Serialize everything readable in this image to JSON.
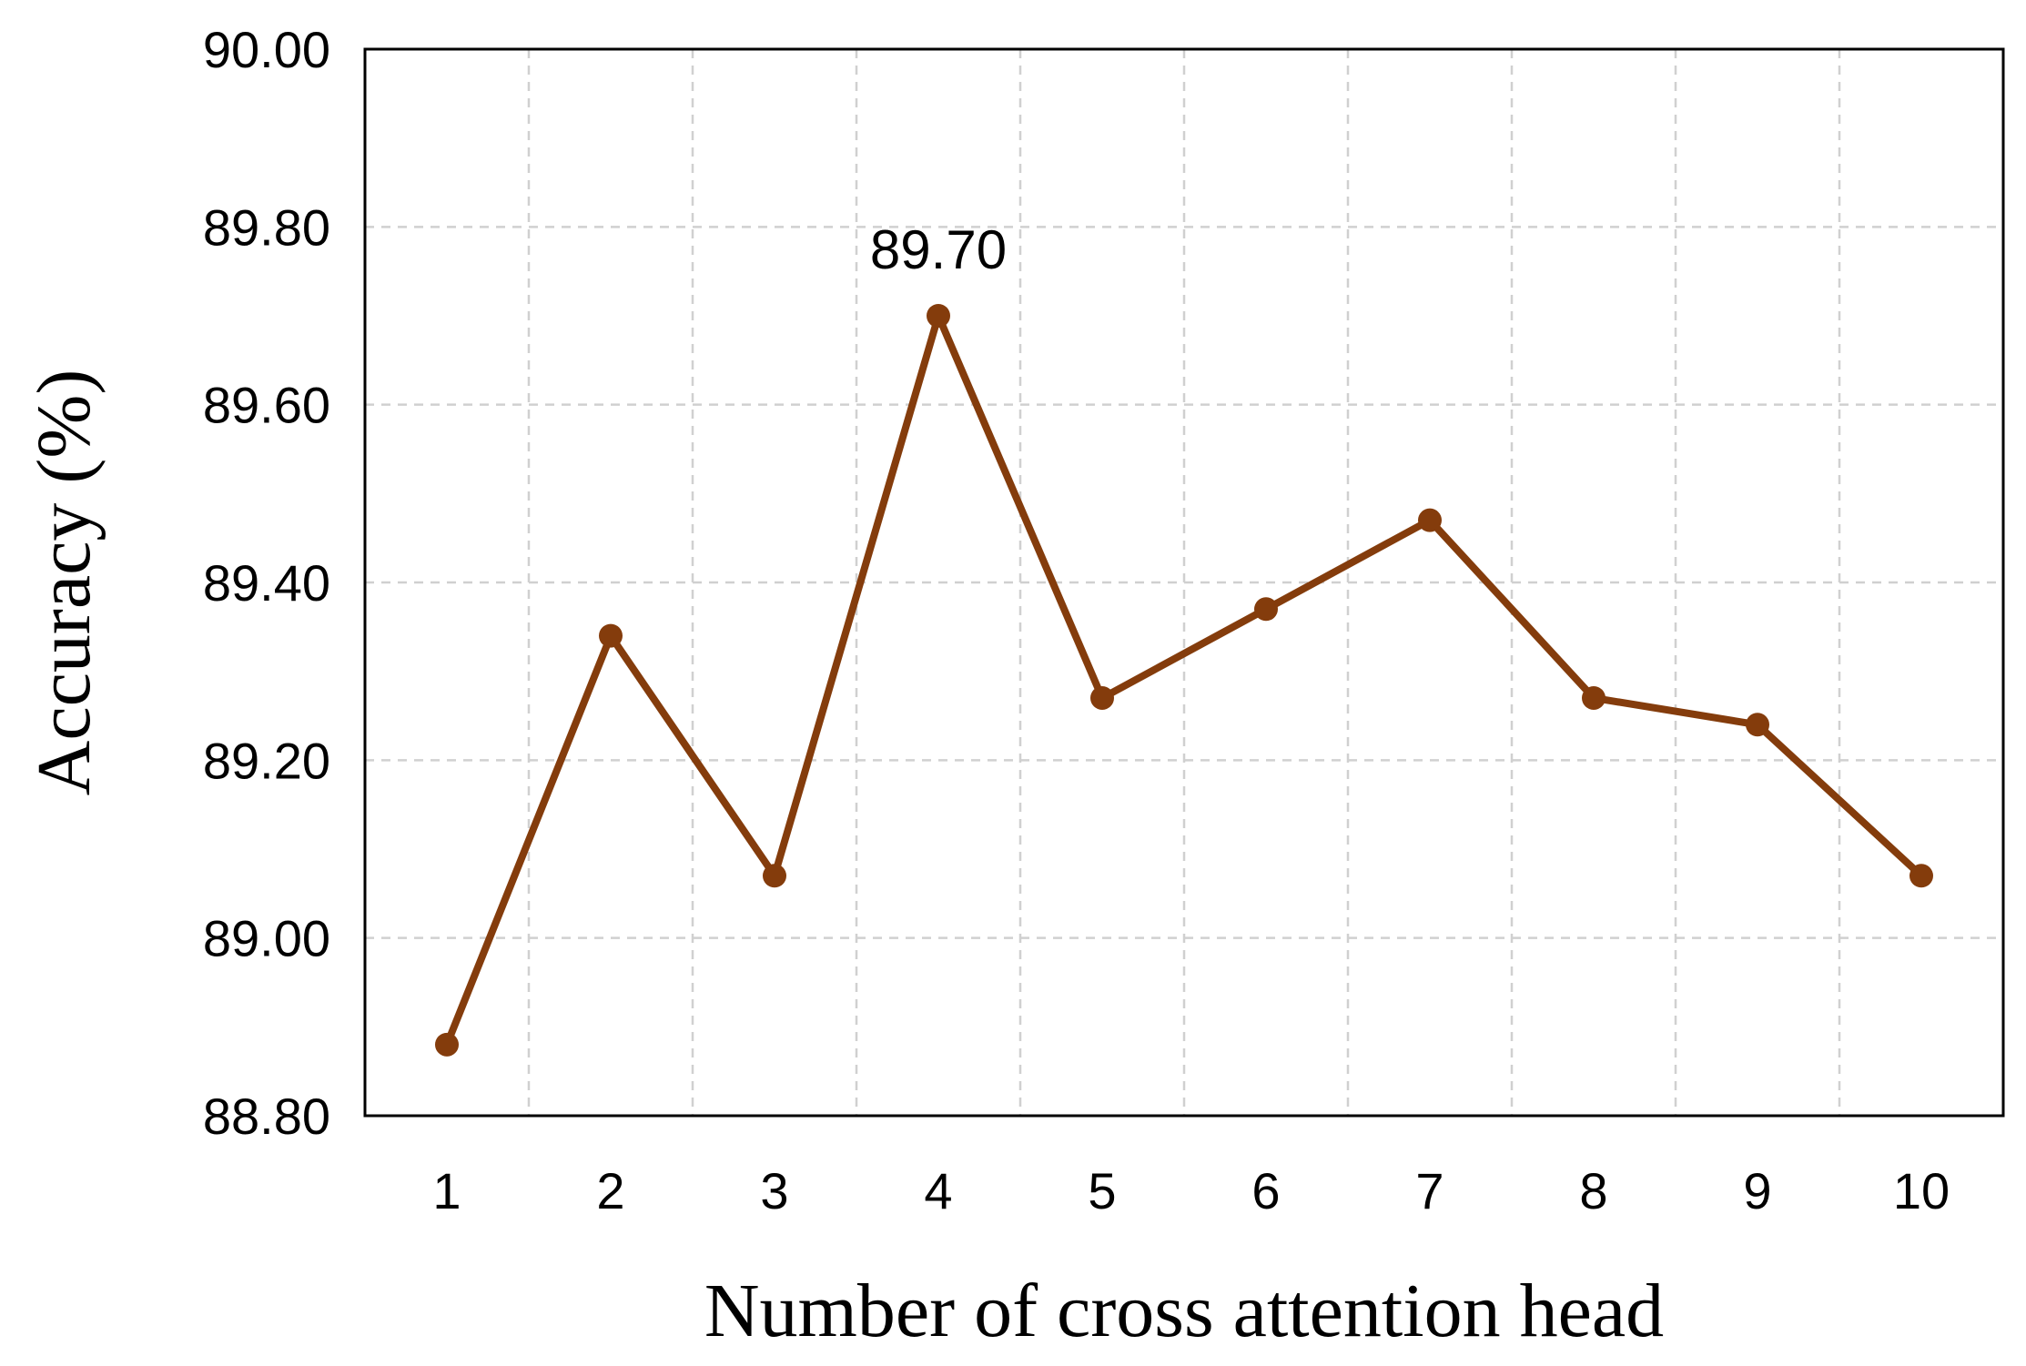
{
  "chart_data": {
    "type": "line",
    "xlabel": "Number of cross attention head",
    "ylabel": "Accuracy (%)",
    "categories": [
      "1",
      "2",
      "3",
      "4",
      "5",
      "6",
      "7",
      "8",
      "9",
      "10"
    ],
    "series": [
      {
        "values": [
          88.88,
          89.34,
          89.07,
          89.7,
          89.27,
          89.37,
          89.47,
          89.27,
          89.24,
          89.07
        ],
        "color": "#843C0C"
      }
    ],
    "ylim": [
      88.8,
      90.0
    ],
    "yticks": [
      "88.80",
      "89.00",
      "89.20",
      "89.40",
      "89.60",
      "89.80",
      "90.00"
    ],
    "grid": true,
    "grid_style": "dashed",
    "annotations": [
      {
        "category": "4",
        "text": "89.70"
      }
    ],
    "legend": "none"
  }
}
